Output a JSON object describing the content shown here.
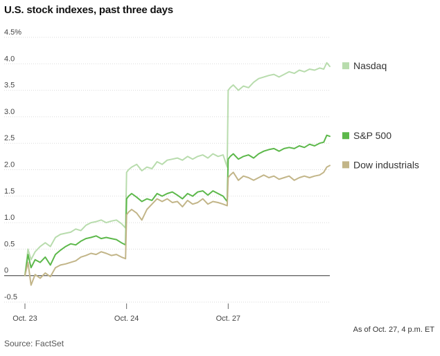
{
  "title": "U.S. stock indexes, past three days",
  "note": "As of Oct. 27, 4 p.m. ET",
  "source": "Source: FactSet",
  "colors": {
    "nasdaq": "#b8dcad",
    "sp500": "#5cb84a",
    "dow": "#c2b588",
    "grid": "#d9d9d9",
    "zero": "#666666"
  },
  "chart_data": {
    "type": "line",
    "title": "U.S. stock indexes, past three days",
    "xlabel": "",
    "ylabel": "",
    "ylim": [
      -0.5,
      4.5
    ],
    "y_ticks": [
      4.5,
      4.0,
      3.5,
      3.0,
      2.5,
      2.0,
      1.5,
      1.0,
      0.5,
      0,
      -0.5
    ],
    "y_tick_labels": [
      "4.5%",
      "4.0",
      "3.5",
      "3.0",
      "2.5",
      "2.0",
      "1.5",
      "1.0",
      "0.5",
      "0",
      "-0.5"
    ],
    "x_domain": [
      0,
      3
    ],
    "x_ticks": [
      0,
      1,
      2
    ],
    "x_tick_labels": [
      "Oct. 23",
      "Oct. 24",
      "Oct. 27"
    ],
    "legend_position": "right",
    "series": [
      {
        "name": "Nasdaq",
        "color_key": "nasdaq",
        "x": [
          0,
          0.03,
          0.06,
          0.1,
          0.15,
          0.2,
          0.25,
          0.3,
          0.35,
          0.4,
          0.45,
          0.5,
          0.55,
          0.6,
          0.65,
          0.7,
          0.75,
          0.8,
          0.85,
          0.9,
          0.95,
          0.99,
          1.0,
          1.02,
          1.05,
          1.1,
          1.15,
          1.2,
          1.25,
          1.3,
          1.35,
          1.4,
          1.45,
          1.5,
          1.55,
          1.6,
          1.65,
          1.7,
          1.75,
          1.8,
          1.85,
          1.9,
          1.95,
          1.99,
          2.0,
          2.02,
          2.05,
          2.1,
          2.15,
          2.2,
          2.25,
          2.3,
          2.35,
          2.4,
          2.45,
          2.5,
          2.55,
          2.6,
          2.65,
          2.7,
          2.75,
          2.8,
          2.85,
          2.9,
          2.94,
          2.97,
          3.0
        ],
        "values": [
          0.0,
          0.5,
          0.3,
          0.45,
          0.55,
          0.62,
          0.55,
          0.72,
          0.78,
          0.8,
          0.82,
          0.88,
          0.85,
          0.95,
          1.0,
          1.02,
          1.05,
          1.0,
          1.03,
          1.05,
          0.98,
          0.9,
          1.95,
          2.0,
          2.05,
          2.1,
          1.98,
          2.05,
          2.02,
          2.15,
          2.1,
          2.18,
          2.2,
          2.22,
          2.18,
          2.25,
          2.2,
          2.25,
          2.28,
          2.22,
          2.3,
          2.25,
          2.28,
          2.05,
          3.5,
          3.55,
          3.6,
          3.5,
          3.58,
          3.55,
          3.65,
          3.72,
          3.75,
          3.78,
          3.8,
          3.75,
          3.8,
          3.85,
          3.82,
          3.88,
          3.85,
          3.9,
          3.88,
          3.92,
          3.9,
          4.02,
          3.95
        ]
      },
      {
        "name": "S&P 500",
        "color_key": "sp500",
        "x": [
          0,
          0.03,
          0.06,
          0.1,
          0.15,
          0.2,
          0.25,
          0.3,
          0.35,
          0.4,
          0.45,
          0.5,
          0.55,
          0.6,
          0.65,
          0.7,
          0.75,
          0.8,
          0.85,
          0.9,
          0.95,
          0.99,
          1.0,
          1.02,
          1.05,
          1.1,
          1.15,
          1.2,
          1.25,
          1.3,
          1.35,
          1.4,
          1.45,
          1.5,
          1.55,
          1.6,
          1.65,
          1.7,
          1.75,
          1.8,
          1.85,
          1.9,
          1.95,
          1.99,
          2.0,
          2.02,
          2.05,
          2.1,
          2.15,
          2.2,
          2.25,
          2.3,
          2.35,
          2.4,
          2.45,
          2.5,
          2.55,
          2.6,
          2.65,
          2.7,
          2.75,
          2.8,
          2.85,
          2.9,
          2.94,
          2.97,
          3.0
        ],
        "values": [
          0.0,
          0.4,
          0.15,
          0.3,
          0.25,
          0.35,
          0.2,
          0.4,
          0.48,
          0.55,
          0.6,
          0.58,
          0.65,
          0.7,
          0.72,
          0.75,
          0.7,
          0.72,
          0.7,
          0.68,
          0.62,
          0.58,
          1.45,
          1.5,
          1.55,
          1.48,
          1.4,
          1.45,
          1.42,
          1.55,
          1.5,
          1.55,
          1.58,
          1.52,
          1.45,
          1.55,
          1.5,
          1.58,
          1.6,
          1.52,
          1.6,
          1.55,
          1.5,
          1.4,
          2.2,
          2.25,
          2.3,
          2.2,
          2.25,
          2.28,
          2.22,
          2.3,
          2.35,
          2.38,
          2.4,
          2.35,
          2.4,
          2.42,
          2.4,
          2.45,
          2.42,
          2.48,
          2.45,
          2.5,
          2.52,
          2.65,
          2.63
        ]
      },
      {
        "name": "Dow industrials",
        "color_key": "dow",
        "x": [
          0,
          0.03,
          0.06,
          0.1,
          0.15,
          0.2,
          0.25,
          0.3,
          0.35,
          0.4,
          0.45,
          0.5,
          0.55,
          0.6,
          0.65,
          0.7,
          0.75,
          0.8,
          0.85,
          0.9,
          0.95,
          0.99,
          1.0,
          1.02,
          1.05,
          1.1,
          1.15,
          1.2,
          1.25,
          1.3,
          1.35,
          1.4,
          1.45,
          1.5,
          1.55,
          1.6,
          1.65,
          1.7,
          1.75,
          1.8,
          1.85,
          1.9,
          1.95,
          1.99,
          2.0,
          2.02,
          2.05,
          2.1,
          2.15,
          2.2,
          2.25,
          2.3,
          2.35,
          2.4,
          2.45,
          2.5,
          2.55,
          2.6,
          2.65,
          2.7,
          2.75,
          2.8,
          2.85,
          2.9,
          2.94,
          2.97,
          3.0
        ],
        "values": [
          0.0,
          0.25,
          -0.18,
          0.02,
          -0.05,
          0.05,
          -0.02,
          0.15,
          0.2,
          0.22,
          0.25,
          0.28,
          0.35,
          0.38,
          0.42,
          0.4,
          0.45,
          0.42,
          0.38,
          0.4,
          0.35,
          0.32,
          1.15,
          1.2,
          1.25,
          1.18,
          1.05,
          1.25,
          1.35,
          1.45,
          1.4,
          1.45,
          1.38,
          1.4,
          1.3,
          1.42,
          1.35,
          1.38,
          1.45,
          1.35,
          1.4,
          1.38,
          1.35,
          1.32,
          1.85,
          1.9,
          1.95,
          1.8,
          1.88,
          1.85,
          1.8,
          1.85,
          1.9,
          1.85,
          1.88,
          1.82,
          1.85,
          1.88,
          1.8,
          1.85,
          1.88,
          1.85,
          1.88,
          1.9,
          1.95,
          2.05,
          2.08
        ]
      }
    ]
  }
}
